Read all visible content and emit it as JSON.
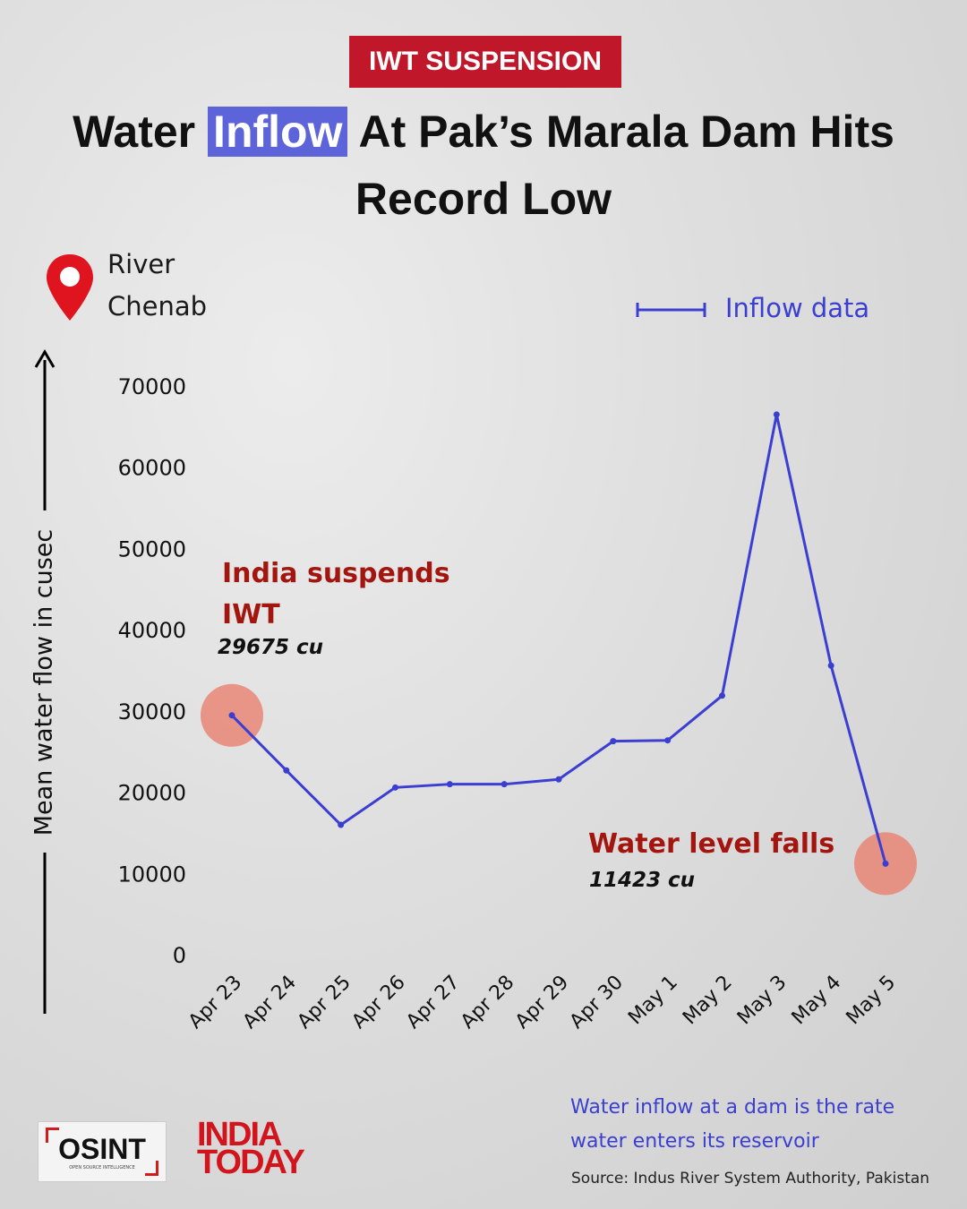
{
  "chart_data": {
    "type": "line",
    "tag": "IWT SUSPENSION",
    "title": {
      "before": "Water",
      "highlight": "Inflow",
      "after": "At Pak’s Marala Dam Hits Record Low"
    },
    "location": "River Chenab",
    "y_label": "Mean water flow in cusec",
    "categories": [
      "Apr 23",
      "Apr 24",
      "Apr 25",
      "Apr 26",
      "Apr 27",
      "Apr 28",
      "Apr 29",
      "Apr 30",
      "May 1",
      "May 2",
      "May 3",
      "May 4",
      "May 5"
    ],
    "series": [
      {
        "name": "Inflow data",
        "color": "#3b3fd1",
        "values": [
          29675,
          22900,
          16200,
          20800,
          21200,
          21200,
          21800,
          26500,
          26600,
          32100,
          66700,
          35800,
          11423
        ]
      }
    ],
    "value_labels": [
      "29675 cu",
      null,
      null,
      null,
      null,
      null,
      null,
      null,
      null,
      null,
      null,
      null,
      "11423 cu"
    ],
    "annotations": [
      "India suspends IWT",
      "Water level falls"
    ],
    "ylim": [
      0,
      70000
    ],
    "yticks": [
      0,
      10000,
      20000,
      30000,
      40000,
      50000,
      60000,
      70000
    ],
    "note": "Water inflow at a dam is the rate water enters its reservoir",
    "source": "Source: Indus River System Authority, Pakistan"
  },
  "footer": {
    "logo_1": "OSINT",
    "logo_1_sub": "OPEN SOURCE INTELLIGENCE",
    "logo_2": "INDIA TODAY"
  }
}
